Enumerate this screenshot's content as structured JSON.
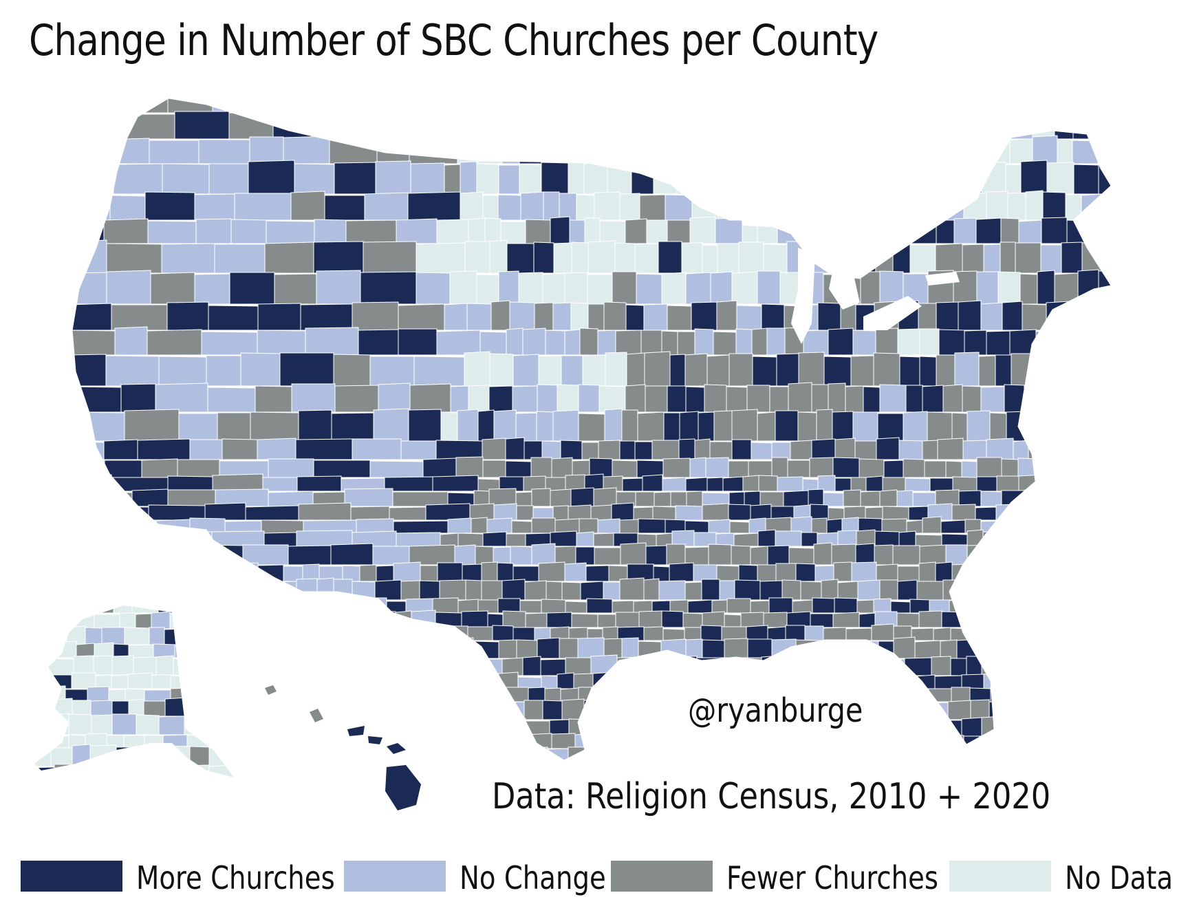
{
  "title": "Change in Number of SBC Churches per County",
  "handle": "@ryanburge",
  "source": "Data: Religion Census, 2010 + 2020",
  "colors": {
    "more": "#1b2a55",
    "no_change": "#b0bfdf",
    "fewer": "#868b8b",
    "no_data": "#dfecec",
    "border": "#ffffff"
  },
  "legend": [
    {
      "key": "more",
      "label": "More Churches"
    },
    {
      "key": "no_change",
      "label": "No Change"
    },
    {
      "key": "fewer",
      "label": "Fewer Churches"
    },
    {
      "key": "no_data",
      "label": "No Data"
    }
  ]
}
